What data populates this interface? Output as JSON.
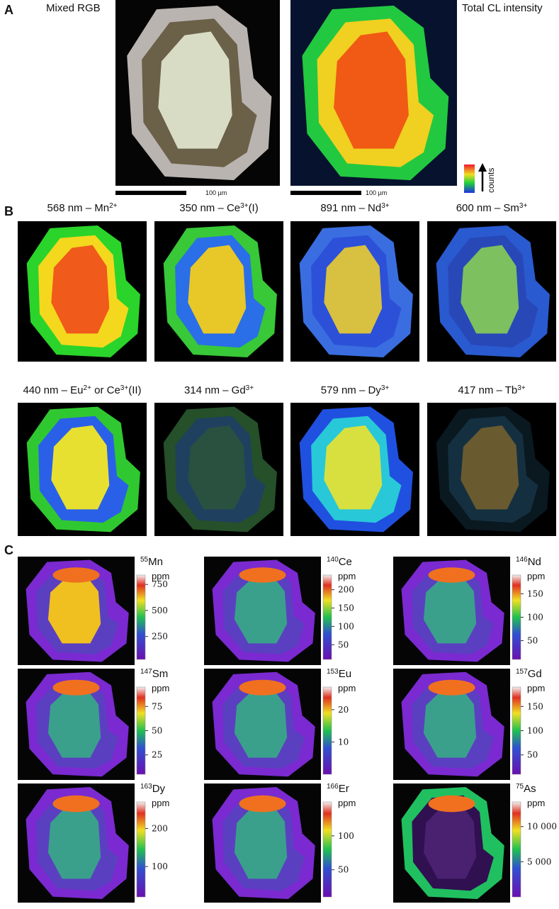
{
  "panel_a": {
    "label": "A",
    "left_title": "Mixed RGB",
    "right_title": "Total CL intensity",
    "scale_bar_left": "100 µm",
    "scale_bar_right": "100 µm",
    "colorbar_label": "counts"
  },
  "panel_b": {
    "label": "B",
    "maps": [
      {
        "title": [
          {
            "text": "568 nm – Mn",
            "sup": "2+"
          }
        ]
      },
      {
        "title": [
          {
            "text": "350 nm – Ce",
            "sup": "3+"
          },
          {
            "text": "(I)"
          }
        ]
      },
      {
        "title": [
          {
            "text": "891 nm – Nd",
            "sup": "3+"
          }
        ]
      },
      {
        "title": [
          {
            "text": "600 nm – Sm",
            "sup": "3+"
          }
        ]
      },
      {
        "title": [
          {
            "text": "440 nm – Eu",
            "sup": "2+"
          },
          {
            "text": " or Ce",
            "sup": "3+"
          },
          {
            "text": "(II)"
          }
        ]
      },
      {
        "title": [
          {
            "text": "314 nm – Gd",
            "sup": "3+"
          }
        ]
      },
      {
        "title": [
          {
            "text": "579 nm – Dy",
            "sup": "3+"
          }
        ]
      },
      {
        "title": [
          {
            "text": "417 nm – Tb",
            "sup": "3+"
          }
        ]
      }
    ]
  },
  "panel_c": {
    "label": "C",
    "maps": [
      {
        "mass": "55",
        "element": "Mn",
        "unit": "ppm",
        "range": [
          30,
          840
        ],
        "ticks": [
          250,
          500,
          750
        ]
      },
      {
        "mass": "140",
        "element": "Ce",
        "unit": "ppm",
        "range": [
          10,
          240
        ],
        "ticks": [
          50,
          100,
          150,
          200
        ]
      },
      {
        "mass": "146",
        "element": "Nd",
        "unit": "ppm",
        "range": [
          10,
          190
        ],
        "ticks": [
          50,
          100,
          150
        ]
      },
      {
        "mass": "147",
        "element": "Sm",
        "unit": "ppm",
        "range": [
          5,
          95
        ],
        "ticks": [
          25,
          50,
          75
        ]
      },
      {
        "mass": "153",
        "element": "Eu",
        "unit": "ppm",
        "range": [
          0,
          27
        ],
        "ticks": [
          10,
          20
        ]
      },
      {
        "mass": "157",
        "element": "Gd",
        "unit": "ppm",
        "range": [
          10,
          190
        ],
        "ticks": [
          50,
          100,
          150
        ]
      },
      {
        "mass": "163",
        "element": "Dy",
        "unit": "ppm",
        "range": [
          20,
          270
        ],
        "ticks": [
          100,
          200
        ]
      },
      {
        "mass": "166",
        "element": "Er",
        "unit": "ppm",
        "range": [
          10,
          150
        ],
        "ticks": [
          50,
          100
        ]
      },
      {
        "mass": "75",
        "element": "As",
        "unit": "ppm",
        "range": [
          0,
          13500
        ],
        "ticks": [
          {
            "value": 5000,
            "label": "5 000"
          },
          {
            "value": 10000,
            "label": "10 000"
          }
        ]
      }
    ]
  }
}
